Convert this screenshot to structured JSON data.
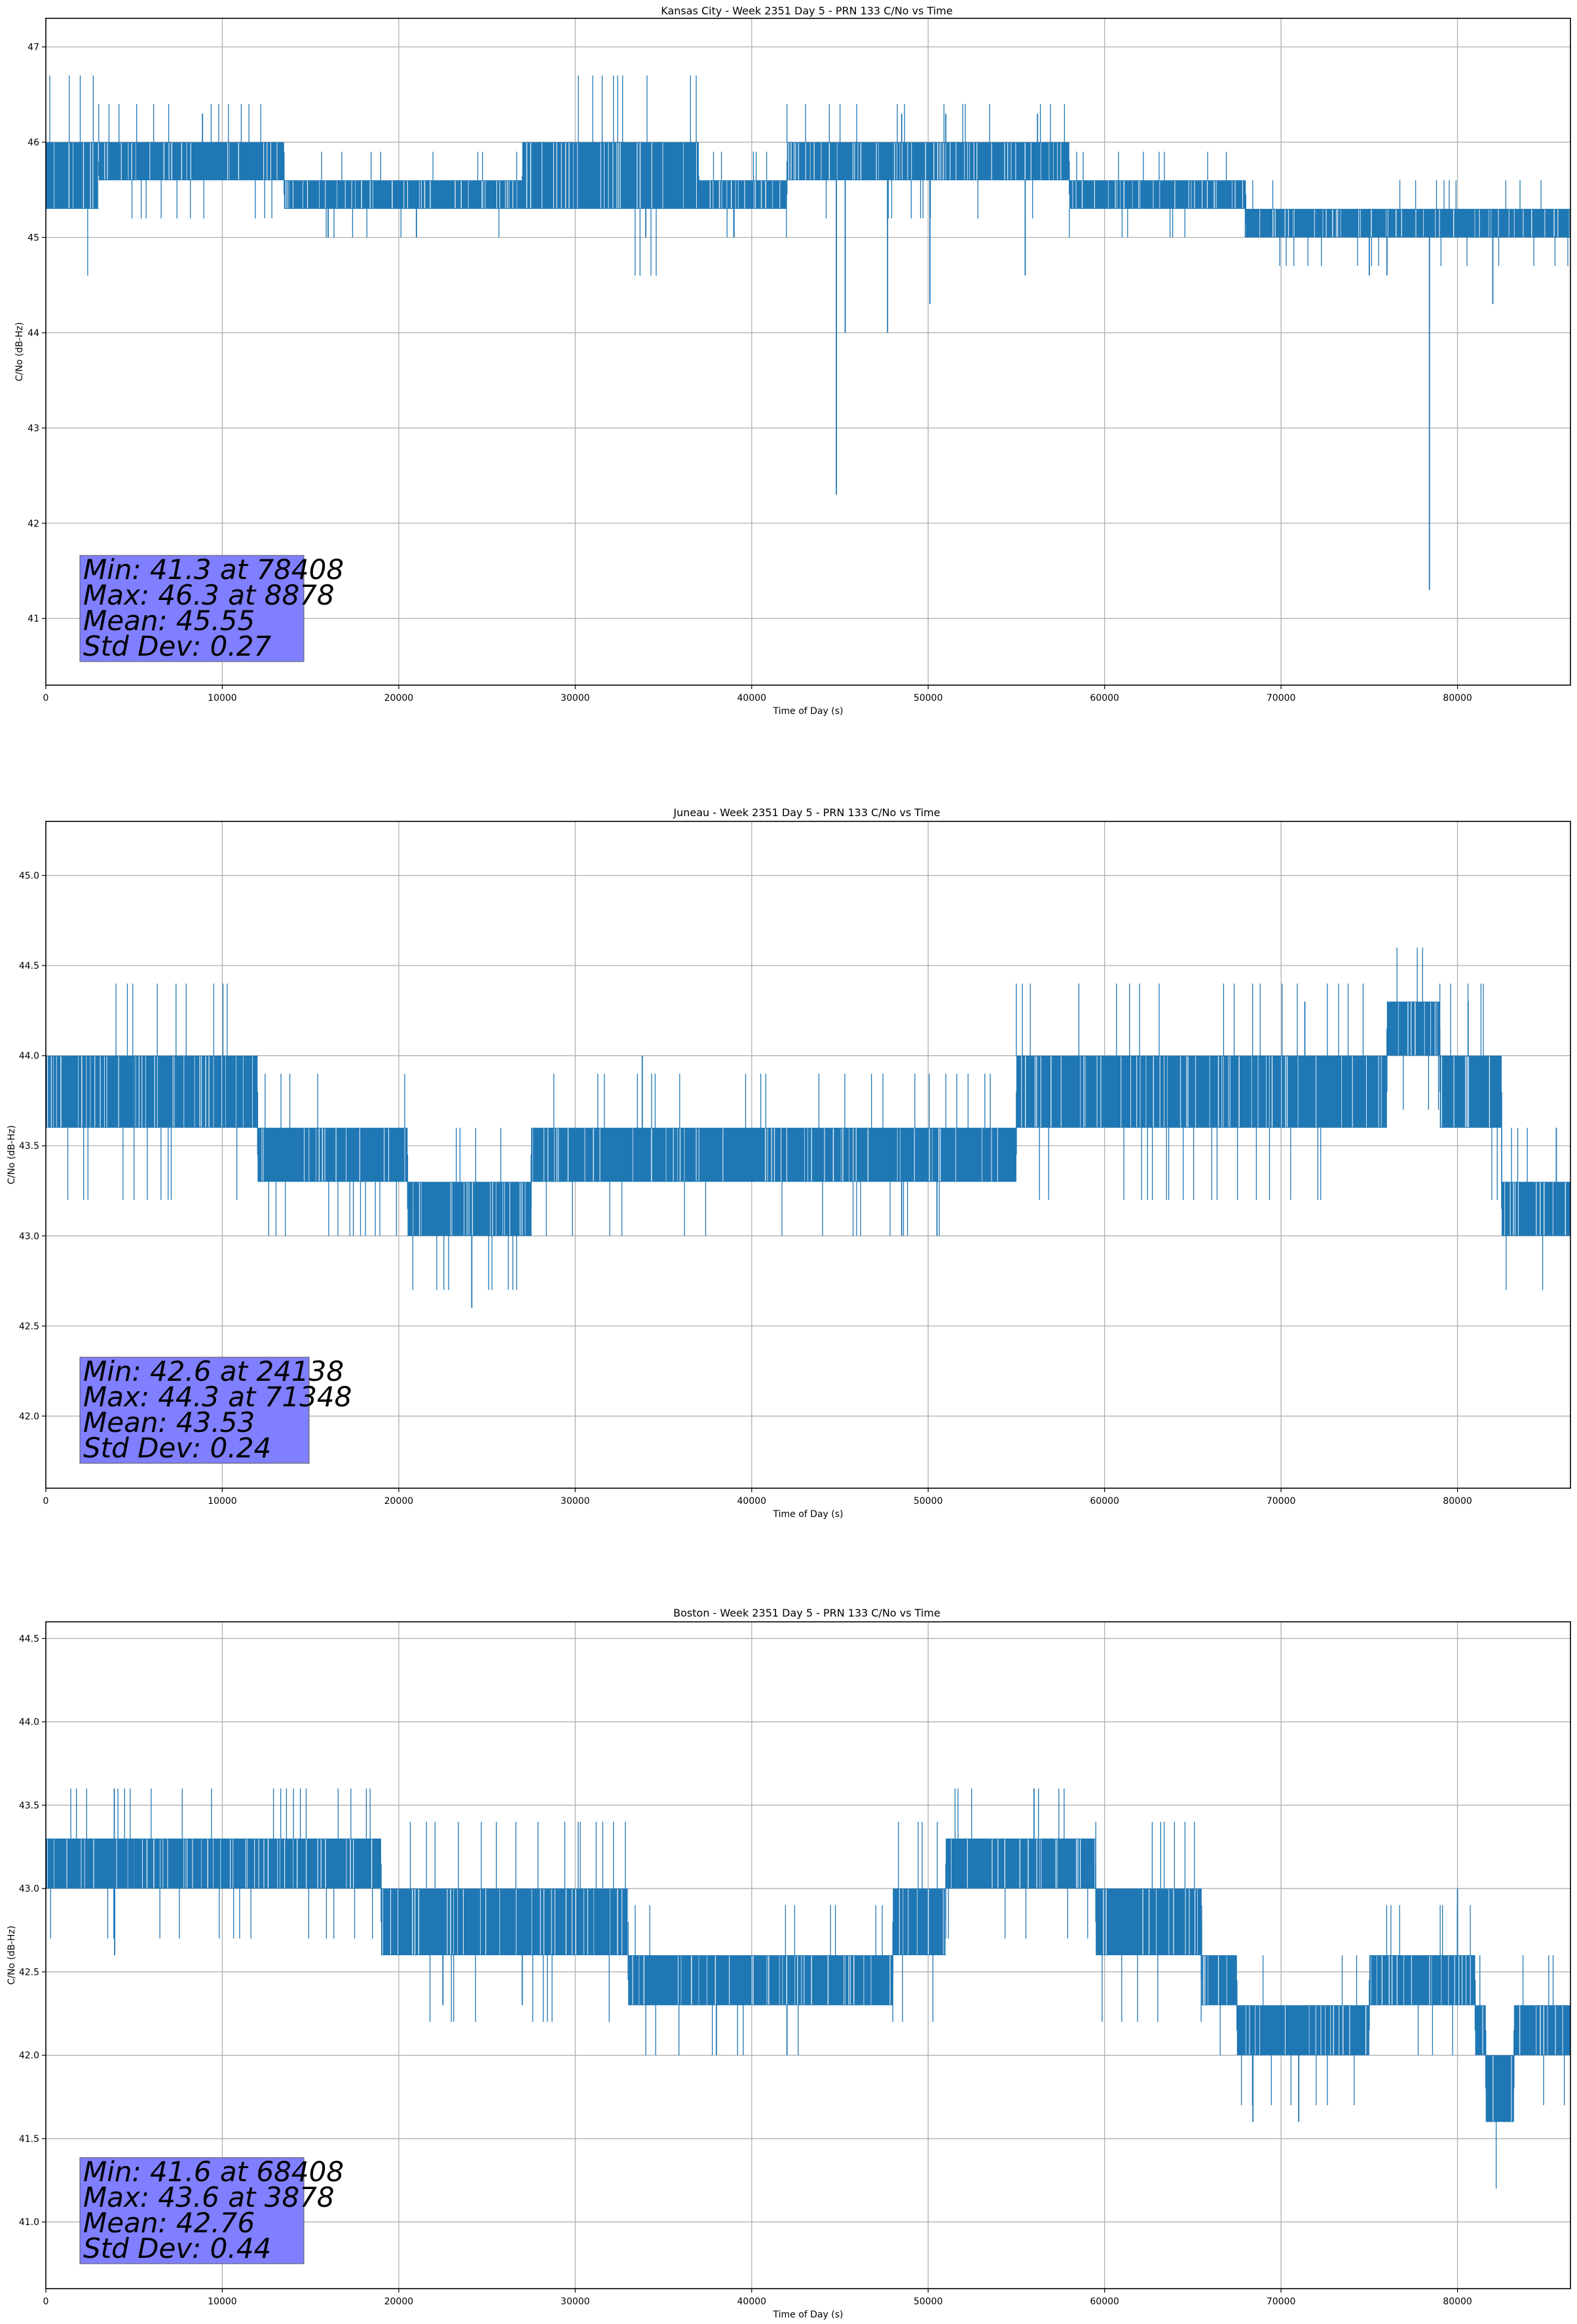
{
  "chart_data": [
    {
      "type": "line",
      "title": "Kansas City - Week 2351 Day 5 - PRN 133 C/No vs Time",
      "xlabel": "Time of Day (s)",
      "ylabel": "C/No (dB-Hz)",
      "xlim": [
        0,
        86400
      ],
      "ylim": [
        40.3,
        47.3
      ],
      "xticks": [
        0,
        10000,
        20000,
        30000,
        40000,
        50000,
        60000,
        70000,
        80000
      ],
      "yticks": [
        41,
        42,
        43,
        44,
        45,
        46,
        47
      ],
      "grid": true,
      "series_color": "#1f77b4",
      "stats": {
        "min": "Min: 41.3 at 78408",
        "max": "Max: 46.3 at 8878",
        "mean": "Mean: 45.55",
        "std": "Std Dev: 0.27"
      },
      "segments": [
        {
          "x0": 0,
          "x1": 3000,
          "low": 45.3,
          "high": 46.0
        },
        {
          "x0": 3000,
          "x1": 13500,
          "low": 45.6,
          "high": 46.0
        },
        {
          "x0": 13500,
          "x1": 27000,
          "low": 45.3,
          "high": 45.6
        },
        {
          "x0": 27000,
          "x1": 37000,
          "low": 45.3,
          "high": 46.0
        },
        {
          "x0": 37000,
          "x1": 42000,
          "low": 45.3,
          "high": 45.6
        },
        {
          "x0": 42000,
          "x1": 48000,
          "low": 45.6,
          "high": 46.0
        },
        {
          "x0": 48000,
          "x1": 53500,
          "low": 45.6,
          "high": 46.0
        },
        {
          "x0": 53500,
          "x1": 58000,
          "low": 45.6,
          "high": 46.0
        },
        {
          "x0": 58000,
          "x1": 68000,
          "low": 45.3,
          "high": 45.6
        },
        {
          "x0": 68000,
          "x1": 86400,
          "low": 45.0,
          "high": 45.3
        }
      ],
      "spikes": [
        {
          "x": 8878,
          "y": 46.3
        },
        {
          "x": 16000,
          "y": 45.0
        },
        {
          "x": 21000,
          "y": 45.0
        },
        {
          "x": 34000,
          "y": 45.0
        },
        {
          "x": 39000,
          "y": 45.0
        },
        {
          "x": 44800,
          "y": 42.3
        },
        {
          "x": 45300,
          "y": 44.0
        },
        {
          "x": 47700,
          "y": 44.0
        },
        {
          "x": 48500,
          "y": 46.3
        },
        {
          "x": 50100,
          "y": 44.3
        },
        {
          "x": 51000,
          "y": 46.3
        },
        {
          "x": 55500,
          "y": 44.6
        },
        {
          "x": 56200,
          "y": 46.3
        },
        {
          "x": 75000,
          "y": 44.6
        },
        {
          "x": 76000,
          "y": 44.6
        },
        {
          "x": 78408,
          "y": 41.3
        },
        {
          "x": 82000,
          "y": 44.3
        }
      ]
    },
    {
      "type": "line",
      "title": "Juneau - Week 2351 Day 5 - PRN 133 C/No vs Time",
      "xlabel": "Time of Day (s)",
      "ylabel": "C/No (dB-Hz)",
      "xlim": [
        0,
        86400
      ],
      "ylim": [
        41.6,
        45.3
      ],
      "xticks": [
        0,
        10000,
        20000,
        30000,
        40000,
        50000,
        60000,
        70000,
        80000
      ],
      "yticks": [
        42.0,
        42.5,
        43.0,
        43.5,
        44.0,
        44.5,
        45.0
      ],
      "grid": true,
      "series_color": "#1f77b4",
      "stats": {
        "min": "Min: 42.6 at 24138",
        "max": "Max: 44.3 at 71348",
        "mean": "Mean: 43.53",
        "std": "Std Dev: 0.24"
      },
      "segments": [
        {
          "x0": 0,
          "x1": 5000,
          "low": 43.6,
          "high": 44.0
        },
        {
          "x0": 5000,
          "x1": 12000,
          "low": 43.6,
          "high": 44.0
        },
        {
          "x0": 12000,
          "x1": 20500,
          "low": 43.3,
          "high": 43.6
        },
        {
          "x0": 20500,
          "x1": 27500,
          "low": 43.0,
          "high": 43.3
        },
        {
          "x0": 27500,
          "x1": 55000,
          "low": 43.3,
          "high": 43.6
        },
        {
          "x0": 55000,
          "x1": 76000,
          "low": 43.6,
          "high": 44.0
        },
        {
          "x0": 76000,
          "x1": 79000,
          "low": 44.0,
          "high": 44.3
        },
        {
          "x0": 79000,
          "x1": 82500,
          "low": 43.6,
          "high": 44.0
        },
        {
          "x0": 82500,
          "x1": 86400,
          "low": 43.0,
          "high": 43.3
        }
      ],
      "spikes": [
        {
          "x": 24138,
          "y": 42.6
        },
        {
          "x": 33800,
          "y": 44.0
        },
        {
          "x": 48500,
          "y": 43.0
        },
        {
          "x": 50500,
          "y": 43.0
        },
        {
          "x": 71348,
          "y": 44.3
        },
        {
          "x": 80600,
          "y": 44.3
        },
        {
          "x": 85600,
          "y": 43.6
        }
      ]
    },
    {
      "type": "line",
      "title": "Boston - Week 2351 Day 5 - PRN 133 C/No vs Time",
      "xlabel": "Time of Day (s)",
      "ylabel": "C/No (dB-Hz)",
      "xlim": [
        0,
        86400
      ],
      "ylim": [
        40.6,
        44.6
      ],
      "xticks": [
        0,
        10000,
        20000,
        30000,
        40000,
        50000,
        60000,
        70000,
        80000
      ],
      "yticks": [
        41.0,
        41.5,
        42.0,
        42.5,
        43.0,
        43.5,
        44.0,
        44.5
      ],
      "grid": true,
      "series_color": "#1f77b4",
      "stats": {
        "min": "Min: 41.6 at 68408",
        "max": "Max: 43.6 at 3878",
        "mean": "Mean: 42.76",
        "std": "Std Dev: 0.44"
      },
      "segments": [
        {
          "x0": 0,
          "x1": 5000,
          "low": 43.0,
          "high": 43.3
        },
        {
          "x0": 5000,
          "x1": 19000,
          "low": 43.0,
          "high": 43.3
        },
        {
          "x0": 19000,
          "x1": 33000,
          "low": 42.6,
          "high": 43.0
        },
        {
          "x0": 33000,
          "x1": 48000,
          "low": 42.3,
          "high": 42.6
        },
        {
          "x0": 48000,
          "x1": 51000,
          "low": 42.6,
          "high": 43.0
        },
        {
          "x0": 51000,
          "x1": 59500,
          "low": 43.0,
          "high": 43.3
        },
        {
          "x0": 59500,
          "x1": 65500,
          "low": 42.6,
          "high": 43.0
        },
        {
          "x0": 65500,
          "x1": 67500,
          "low": 42.3,
          "high": 42.6
        },
        {
          "x0": 67500,
          "x1": 75000,
          "low": 42.0,
          "high": 42.3
        },
        {
          "x0": 75000,
          "x1": 81000,
          "low": 42.3,
          "high": 42.6
        },
        {
          "x0": 81000,
          "x1": 81600,
          "low": 42.0,
          "high": 42.3
        },
        {
          "x0": 81600,
          "x1": 83200,
          "low": 41.6,
          "high": 42.0
        },
        {
          "x0": 83200,
          "x1": 86400,
          "low": 42.0,
          "high": 42.3
        }
      ],
      "spikes": [
        {
          "x": 3878,
          "y": 43.6
        },
        {
          "x": 3900,
          "y": 42.6
        },
        {
          "x": 22500,
          "y": 42.3
        },
        {
          "x": 27000,
          "y": 42.3
        },
        {
          "x": 38000,
          "y": 42.0
        },
        {
          "x": 42000,
          "y": 42.0
        },
        {
          "x": 56000,
          "y": 43.6
        },
        {
          "x": 66000,
          "y": 42.3
        },
        {
          "x": 68408,
          "y": 41.6
        },
        {
          "x": 71000,
          "y": 41.6
        },
        {
          "x": 80000,
          "y": 43.0
        }
      ]
    }
  ]
}
